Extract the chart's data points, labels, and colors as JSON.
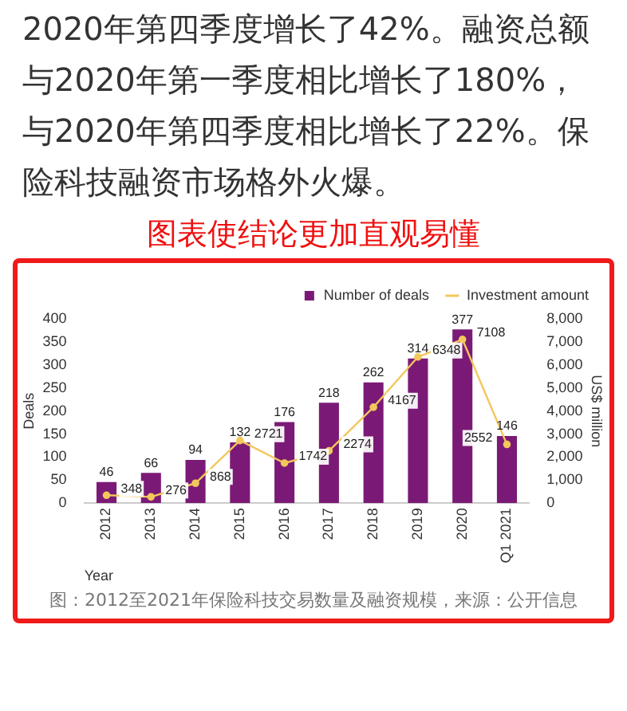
{
  "chart_data": {
    "type": "bar",
    "title": "图表使结论更加直观易懂",
    "annotations": [
      "2020年第四季度增长了42%。融资总额与2020年第一季度相比增长了180%，与2020年第四季度相比增长了22%。保险科技融资市场格外火爆。",
      "图：2012至2021年保险科技交易数量及融资规模，来源：公开信息"
    ],
    "xlabel": "Year",
    "ylabel": "Deals",
    "y2label": "US$ million",
    "categories": [
      "2012",
      "2013",
      "2014",
      "2015",
      "2016",
      "2017",
      "2018",
      "2019",
      "2020",
      "Q1 2021"
    ],
    "series": [
      {
        "name": "Number of deals",
        "color": "#7b1a76",
        "values": [
          46,
          66,
          94,
          132,
          176,
          218,
          262,
          314,
          377,
          146
        ]
      },
      {
        "name": "Investment amount",
        "type": "line",
        "axis": "y2",
        "color": "#f2c75c",
        "values": [
          348,
          276,
          868,
          2721,
          1742,
          2274,
          4167,
          6348,
          7108,
          2552
        ]
      }
    ],
    "ylim": [
      0,
      400
    ],
    "yticks": [
      0,
      50,
      100,
      150,
      200,
      250,
      300,
      350,
      400
    ],
    "y2lim": [
      0,
      8000
    ],
    "y2ticks": [
      {
        "value": 0,
        "label": "0"
      },
      {
        "value": 1000,
        "label": "1,000"
      },
      {
        "value": 2000,
        "label": "2,000"
      },
      {
        "value": 3000,
        "label": "3,000"
      },
      {
        "value": 4000,
        "label": "4,000"
      },
      {
        "value": 5000,
        "label": "5,000"
      },
      {
        "value": 6000,
        "label": "6,000"
      },
      {
        "value": 7000,
        "label": "7,000"
      },
      {
        "value": 8000,
        "label": "8,000"
      }
    ],
    "data_labels": true,
    "legend": "top right",
    "grid": false,
    "marker": "circle",
    "line_style": "solid"
  }
}
